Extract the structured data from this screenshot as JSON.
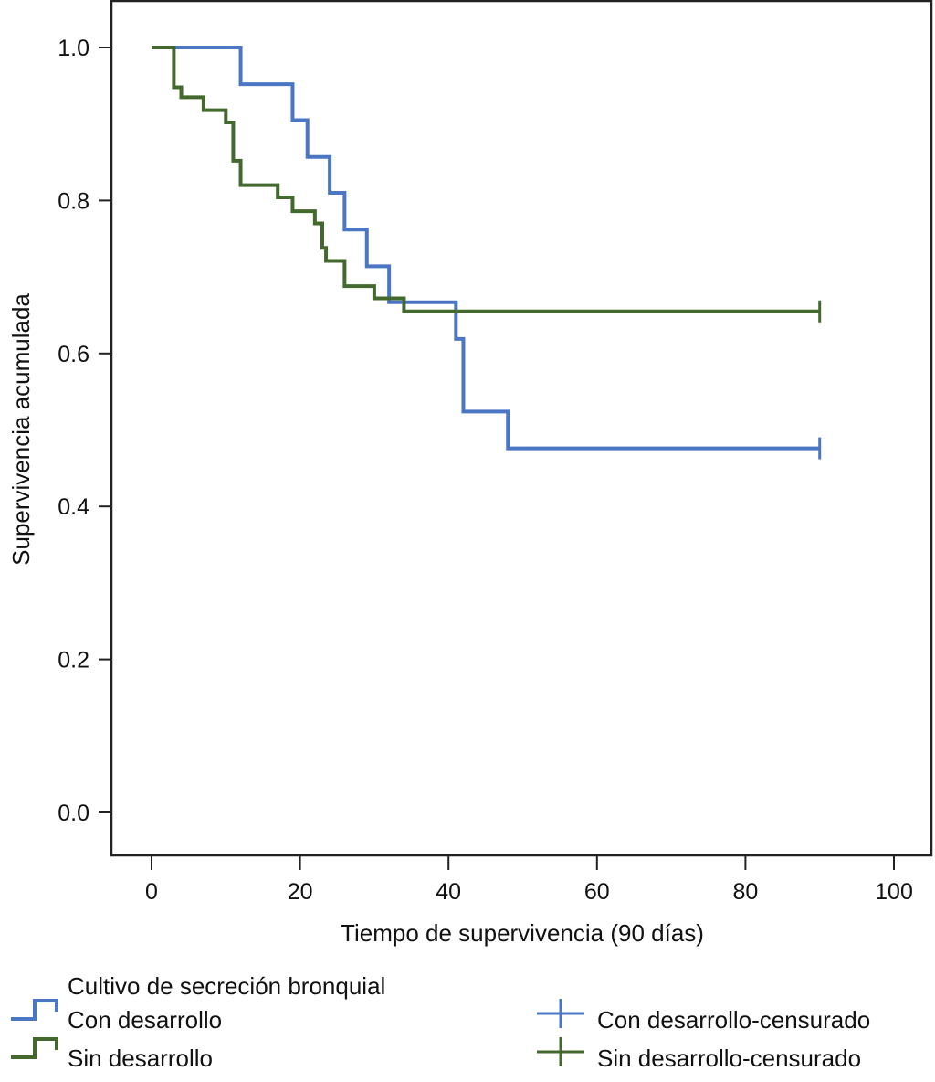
{
  "chart_data": {
    "type": "line",
    "subtype": "kaplan-meier-step",
    "title": "",
    "xlabel": "Tiempo de supervivencia (90 días)",
    "ylabel": "Supervivencia acumulada",
    "xlim": [
      -5,
      105
    ],
    "ylim": [
      -0.056,
      1.06
    ],
    "xticks": [
      0,
      20,
      40,
      60,
      80,
      100
    ],
    "xtick_labels": [
      "0",
      "20",
      "40",
      "60",
      "80",
      "100"
    ],
    "yticks": [
      0.0,
      0.2,
      0.4,
      0.6,
      0.8,
      1.0
    ],
    "ytick_labels": [
      "0.0",
      "0.2",
      "0.4",
      "0.6",
      "0.8",
      "1.0"
    ],
    "grid": false,
    "legend": {
      "title": "Cultivo de secreción bronquial",
      "placement": "bottom",
      "entries": [
        {
          "label": "Con desarrollo",
          "kind": "step",
          "series": 0
        },
        {
          "label": "Sin desarrollo",
          "kind": "step",
          "series": 1
        },
        {
          "label": "Con desarrollo-censurado",
          "kind": "censor",
          "series": 0
        },
        {
          "label": "Sin desarrollo-censurado",
          "kind": "censor",
          "series": 1
        }
      ]
    },
    "series": [
      {
        "name": "Con desarrollo",
        "color": "#4a76c4",
        "steps": [
          {
            "x": 0,
            "y": 1.0
          },
          {
            "x": 12,
            "y": 0.952
          },
          {
            "x": 19,
            "y": 0.905
          },
          {
            "x": 21,
            "y": 0.857
          },
          {
            "x": 24,
            "y": 0.81
          },
          {
            "x": 26,
            "y": 0.762
          },
          {
            "x": 29,
            "y": 0.714
          },
          {
            "x": 32,
            "y": 0.667
          },
          {
            "x": 41,
            "y": 0.619
          },
          {
            "x": 42,
            "y": 0.524
          },
          {
            "x": 48,
            "y": 0.476
          }
        ],
        "end_x": 90,
        "censored": [
          {
            "x": 90,
            "y": 0.476
          }
        ]
      },
      {
        "name": "Sin desarrollo",
        "color": "#44692e",
        "steps": [
          {
            "x": 0,
            "y": 1.0
          },
          {
            "x": 3,
            "y": 0.948
          },
          {
            "x": 4,
            "y": 0.935
          },
          {
            "x": 7,
            "y": 0.918
          },
          {
            "x": 10,
            "y": 0.902
          },
          {
            "x": 11,
            "y": 0.852
          },
          {
            "x": 12,
            "y": 0.82
          },
          {
            "x": 17,
            "y": 0.804
          },
          {
            "x": 19,
            "y": 0.786
          },
          {
            "x": 22,
            "y": 0.77
          },
          {
            "x": 23,
            "y": 0.738
          },
          {
            "x": 23.5,
            "y": 0.721
          },
          {
            "x": 26,
            "y": 0.688
          },
          {
            "x": 30,
            "y": 0.672
          },
          {
            "x": 34,
            "y": 0.655
          }
        ],
        "end_x": 90,
        "censored": [
          {
            "x": 90,
            "y": 0.655
          }
        ]
      }
    ]
  }
}
